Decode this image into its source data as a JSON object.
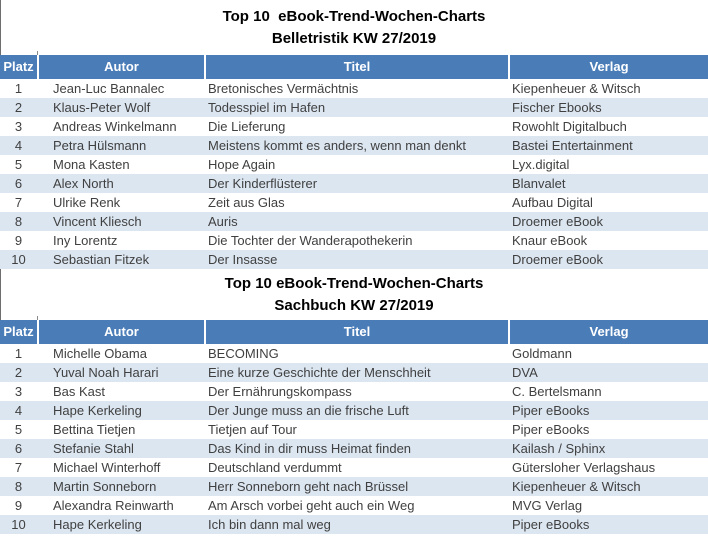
{
  "colors": {
    "header_bg": "#4a7cb8",
    "header_text": "#ffffff",
    "band_bg": "#dce6f1",
    "body_text": "#404040",
    "title_text": "#000000"
  },
  "tables": [
    {
      "title": "Top 10  eBook-Trend-Wochen-Charts",
      "subtitle": "Belletristik KW 27/2019",
      "columns": [
        "Platz",
        "Autor",
        "Titel",
        "Verlag"
      ],
      "rows": [
        {
          "platz": "1",
          "autor": "Jean-Luc Bannalec",
          "titel": "Bretonisches Vermächtnis",
          "verlag": "Kiepenheuer & Witsch"
        },
        {
          "platz": "2",
          "autor": "Klaus-Peter Wolf",
          "titel": "Todesspiel im Hafen",
          "verlag": "Fischer Ebooks"
        },
        {
          "platz": "3",
          "autor": "Andreas Winkelmann",
          "titel": "Die Lieferung",
          "verlag": "Rowohlt Digitalbuch"
        },
        {
          "platz": "4",
          "autor": "Petra Hülsmann",
          "titel": "Meistens kommt es anders, wenn man denkt",
          "verlag": "Bastei Entertainment"
        },
        {
          "platz": "5",
          "autor": "Mona Kasten",
          "titel": "Hope Again",
          "verlag": "Lyx.digital"
        },
        {
          "platz": "6",
          "autor": "Alex North",
          "titel": "Der Kinderflüsterer",
          "verlag": "Blanvalet"
        },
        {
          "platz": "7",
          "autor": "Ulrike Renk",
          "titel": "Zeit aus Glas",
          "verlag": "Aufbau Digital"
        },
        {
          "platz": "8",
          "autor": "Vincent Kliesch",
          "titel": "Auris",
          "verlag": "Droemer eBook"
        },
        {
          "platz": "9",
          "autor": "Iny Lorentz",
          "titel": "Die Tochter der Wanderapothekerin",
          "verlag": "Knaur eBook"
        },
        {
          "platz": "10",
          "autor": "Sebastian Fitzek",
          "titel": "Der Insasse",
          "verlag": "Droemer eBook"
        }
      ]
    },
    {
      "title": "Top 10 eBook-Trend-Wochen-Charts",
      "subtitle": "Sachbuch KW 27/2019",
      "columns": [
        "Platz",
        "Autor",
        "Titel",
        "Verlag"
      ],
      "rows": [
        {
          "platz": "1",
          "autor": "Michelle Obama",
          "titel": "BECOMING",
          "verlag": "Goldmann"
        },
        {
          "platz": "2",
          "autor": "Yuval Noah Harari",
          "titel": "Eine kurze Geschichte der Menschheit",
          "verlag": "DVA"
        },
        {
          "platz": "3",
          "autor": "Bas Kast",
          "titel": "Der Ernährungskompass",
          "verlag": "C. Bertelsmann"
        },
        {
          "platz": "4",
          "autor": "Hape Kerkeling",
          "titel": "Der Junge muss an die frische Luft",
          "verlag": "Piper eBooks"
        },
        {
          "platz": "5",
          "autor": "Bettina Tietjen",
          "titel": "Tietjen auf Tour",
          "verlag": "Piper eBooks"
        },
        {
          "platz": "6",
          "autor": "Stefanie Stahl",
          "titel": "Das Kind in dir muss Heimat finden",
          "verlag": "Kailash / Sphinx"
        },
        {
          "platz": "7",
          "autor": "Michael Winterhoff",
          "titel": "Deutschland verdummt",
          "verlag": "Gütersloher Verlagshaus"
        },
        {
          "platz": "8",
          "autor": "Martin Sonneborn",
          "titel": "Herr Sonneborn geht nach Brüssel",
          "verlag": "Kiepenheuer & Witsch"
        },
        {
          "platz": "9",
          "autor": "Alexandra Reinwarth",
          "titel": "Am Arsch vorbei geht auch ein Weg",
          "verlag": "MVG Verlag"
        },
        {
          "platz": "10",
          "autor": "Hape Kerkeling",
          "titel": "Ich bin dann mal weg",
          "verlag": "Piper eBooks"
        }
      ]
    }
  ]
}
